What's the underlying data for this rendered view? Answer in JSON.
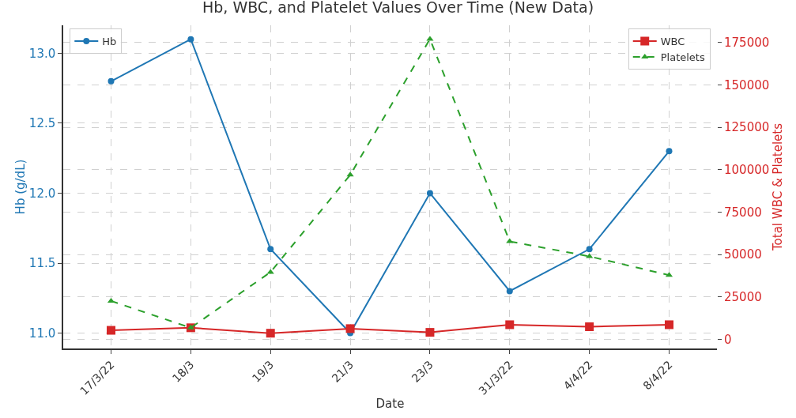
{
  "chart_data": {
    "type": "line",
    "title": "Hb, WBC, and Platelet Values Over Time (New Data)",
    "xlabel": "Date",
    "ylabel": "Hb (g/dL)",
    "y2label": "Total WBC & Platelets",
    "categories": [
      "17/3/22",
      "18/3",
      "19/3",
      "21/3",
      "23/3",
      "31/3/22",
      "4/4/22",
      "8/4/22"
    ],
    "series": [
      {
        "name": "Hb",
        "color": "#1f77b4",
        "marker": "circle",
        "line_style": "solid",
        "values": [
          12.8,
          13.1,
          11.6,
          11.0,
          12.0,
          11.3,
          11.6,
          12.3
        ]
      },
      {
        "name": "WBC",
        "color": "#d62728",
        "marker": "square",
        "line_style": "solid",
        "axis": "y2",
        "values": [
          5300,
          6800,
          3600,
          6300,
          4100,
          8600,
          7400,
          8600
        ]
      },
      {
        "name": "Platelets",
        "color": "#2ca02c",
        "marker": "triangle",
        "line_style": "dashed",
        "axis": "y2",
        "values": [
          22600,
          6800,
          39600,
          96900,
          177000,
          57700,
          48900,
          37800
        ]
      }
    ],
    "ylim": [
      10.89,
      13.2
    ],
    "yticks": [
      {
        "value": 11,
        "label": "11.0"
      },
      11.5,
      {
        "value": 12,
        "label": "12.0"
      },
      12.5,
      {
        "value": 13,
        "label": "13.0"
      }
    ],
    "y2lim": [
      -5400,
      185100
    ],
    "y2ticks": [
      0,
      25000,
      50000,
      75000,
      100000,
      125000,
      150000,
      175000
    ],
    "grid": true,
    "legend": "top"
  }
}
